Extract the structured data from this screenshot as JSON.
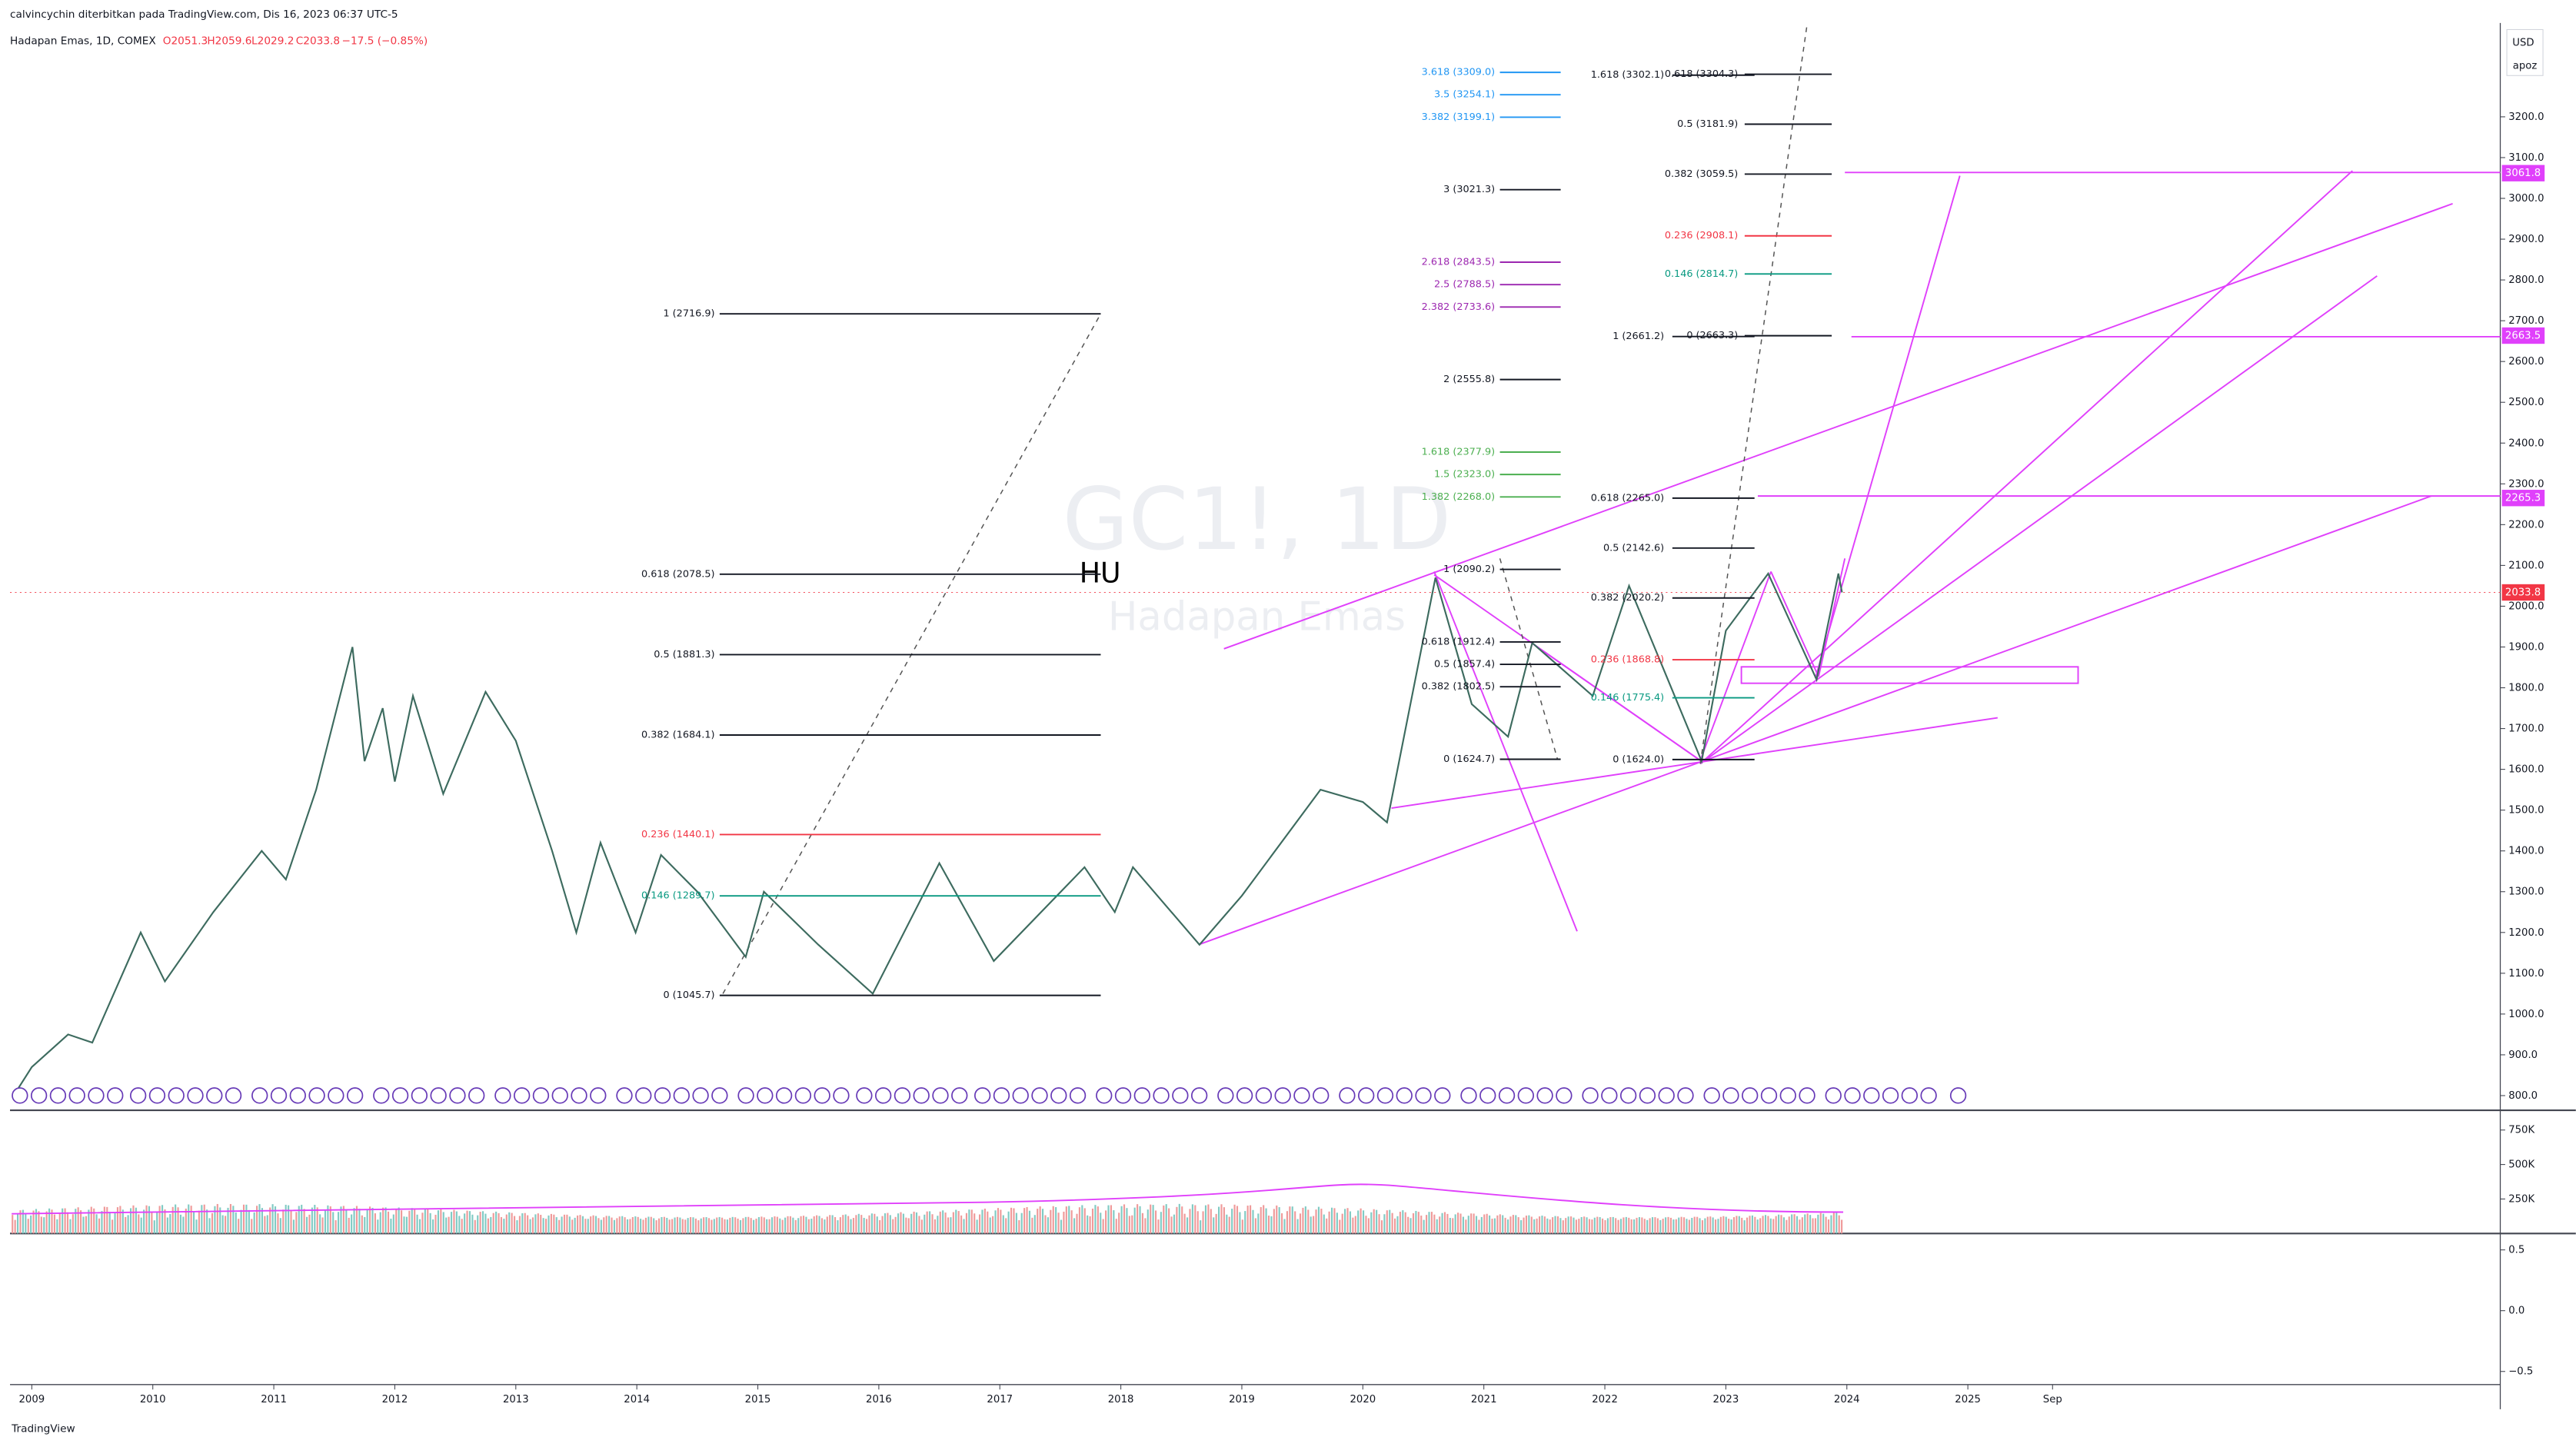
{
  "chart_data": {
    "type": "line",
    "publisher": "calvincychin diterbitkan pada TradingView.com, Dis 16, 2023 06:37 UTC-5",
    "symbol_line": "Hadapan Emas, 1D, COMEX",
    "ohlc": [
      "O2051.3",
      "H2059.6",
      "L2029.2",
      "C2033.8",
      "−17.5 (−0.85%)"
    ],
    "watermark_symbol": "GC1!, 1D",
    "watermark_name": "Hadapan Emas",
    "annotation": "HU",
    "currency": "USD",
    "scale_mode": "apoz",
    "footer": "TradingView",
    "color": "#3d6b5f",
    "x": [
      2008.85,
      2009.0,
      2009.3,
      2009.5,
      2009.9,
      2010.1,
      2010.5,
      2010.9,
      2011.1,
      2011.35,
      2011.65,
      2011.75,
      2011.9,
      2012.0,
      2012.15,
      2012.4,
      2012.75,
      2013.0,
      2013.3,
      2013.5,
      2013.7,
      2013.99,
      2014.2,
      2014.5,
      2014.9,
      2015.05,
      2015.5,
      2015.95,
      2016.5,
      2016.95,
      2017.7,
      2017.95,
      2018.1,
      2018.65,
      2019.0,
      2019.65,
      2020.0,
      2020.2,
      2020.6,
      2020.9,
      2021.2,
      2021.4,
      2021.9,
      2022.2,
      2022.8,
      2023.0,
      2023.35,
      2023.75,
      2023.93,
      2023.96
    ],
    "values": [
      800,
      870,
      950,
      930,
      1200,
      1080,
      1250,
      1400,
      1330,
      1550,
      1900,
      1620,
      1750,
      1570,
      1780,
      1540,
      1790,
      1670,
      1400,
      1200,
      1420,
      1200,
      1390,
      1300,
      1140,
      1300,
      1170,
      1050,
      1370,
      1130,
      1360,
      1250,
      1360,
      1170,
      1290,
      1550,
      1520,
      1470,
      2070,
      1760,
      1680,
      1910,
      1780,
      2050,
      1620,
      1940,
      2080,
      1820,
      2080,
      2033.8
    ],
    "xlim": [
      2008.82,
      2029.4
    ],
    "ylim": [
      768,
      3426
    ],
    "xticks": [
      2009,
      2010,
      2011,
      2012,
      2013,
      2014,
      2015,
      2016,
      2017,
      2018,
      2019,
      2020,
      2021,
      2022,
      2023,
      2024,
      2025,
      {
        "value": 2025.7,
        "label": "Sep"
      }
    ],
    "yticks": [
      {
        "value": 800,
        "label": "800.0"
      },
      {
        "value": 900,
        "label": "900.0"
      },
      {
        "value": 1000,
        "label": "1000.0"
      },
      {
        "value": 1100,
        "label": "1100.0"
      },
      {
        "value": 1200,
        "label": "1200.0"
      },
      {
        "value": 1300,
        "label": "1300.0"
      },
      {
        "value": 1400,
        "label": "1400.0"
      },
      {
        "value": 1500,
        "label": "1500.0"
      },
      {
        "value": 1600,
        "label": "1600.0"
      },
      {
        "value": 1700,
        "label": "1700.0"
      },
      {
        "value": 1800,
        "label": "1800.0"
      },
      {
        "value": 1900,
        "label": "1900.0"
      },
      {
        "value": 2000,
        "label": "2000.0"
      },
      {
        "value": 2100,
        "label": "2100.0"
      },
      {
        "value": 2200,
        "label": "2200.0"
      },
      {
        "value": 2300,
        "label": "2300.0"
      },
      {
        "value": 2400,
        "label": "2400.0"
      },
      {
        "value": 2500,
        "label": "2500.0"
      },
      {
        "value": 2600,
        "label": "2600.0"
      },
      {
        "value": 2700,
        "label": "2700.0"
      },
      {
        "value": 2800,
        "label": "2800.0"
      },
      {
        "value": 2900,
        "label": "2900.0"
      },
      {
        "value": 3000,
        "label": "3000.0"
      },
      {
        "value": 3100,
        "label": "3100.0"
      },
      {
        "value": 3200,
        "label": "3200.0"
      }
    ],
    "price_tags": [
      {
        "value": 3061.8,
        "color": "#e040fb"
      },
      {
        "value": 2663.5,
        "color": "#e040fb"
      },
      {
        "value": 2265.3,
        "color": "#e040fb"
      },
      {
        "value": 2033.8,
        "color": "#f23645"
      }
    ],
    "volume_ylim": [
      0,
      893000
    ],
    "volume_ticks": [
      {
        "value": 750000,
        "label": "750K"
      },
      {
        "value": 500000,
        "label": "500K"
      },
      {
        "value": 250000,
        "label": "250K"
      }
    ],
    "osc_ylim": [
      -0.608,
      0.635
    ],
    "osc_ticks": [
      0.5,
      {
        "value": 0,
        "label": "0.0"
      },
      {
        "value": -0.5,
        "label": "−0.5"
      }
    ],
    "fib_sets": [
      {
        "levels": [
          {
            "value": 2716.9,
            "label": "1 (2716.9)",
            "color": "#131722"
          },
          {
            "value": 2078.5,
            "label": "0.618 (2078.5)",
            "color": "#131722"
          },
          {
            "value": 1881.3,
            "label": "0.5 (1881.3)",
            "color": "#131722"
          },
          {
            "value": 1684.1,
            "label": "0.382 (1684.1)",
            "color": "#131722"
          },
          {
            "value": 1440.1,
            "label": "0.236 (1440.1)",
            "color": "#f23645"
          },
          {
            "value": 1289.7,
            "label": "0.146 (1289.7)",
            "color": "#089981"
          },
          {
            "value": 1045.7,
            "label": "0 (1045.7)",
            "color": "#131722"
          }
        ]
      },
      {
        "levels": [
          {
            "value": 3309.0,
            "label": "3.618 (3309.0)",
            "color": "#2196f3"
          },
          {
            "value": 3254.1,
            "label": "3.5 (3254.1)",
            "color": "#2196f3"
          },
          {
            "value": 3199.1,
            "label": "3.382 (3199.1)",
            "color": "#2196f3"
          },
          {
            "value": 3021.3,
            "label": "3 (3021.3)",
            "color": "#131722"
          },
          {
            "value": 2843.5,
            "label": "2.618 (2843.5)",
            "color": "#9c27b0"
          },
          {
            "value": 2788.5,
            "label": "2.5 (2788.5)",
            "color": "#9c27b0"
          },
          {
            "value": 2733.6,
            "label": "2.382 (2733.6)",
            "color": "#9c27b0"
          },
          {
            "value": 2555.8,
            "label": "2 (2555.8)",
            "color": "#131722"
          },
          {
            "value": 2377.9,
            "label": "1.618 (2377.9)",
            "color": "#4caf50"
          },
          {
            "value": 2323.0,
            "label": "1.5 (2323.0)",
            "color": "#4caf50"
          },
          {
            "value": 2268.0,
            "label": "1.382 (2268.0)",
            "color": "#4caf50"
          },
          {
            "value": 2090.2,
            "label": "1 (2090.2)",
            "color": "#131722"
          },
          {
            "value": 1912.4,
            "label": "0.618 (1912.4)",
            "color": "#131722"
          },
          {
            "value": 1857.4,
            "label": "0.5 (1857.4)",
            "color": "#131722"
          },
          {
            "value": 1802.5,
            "label": "0.382 (1802.5)",
            "color": "#131722"
          },
          {
            "value": 1624.7,
            "label": "0 (1624.7)",
            "color": "#131722"
          }
        ]
      },
      {
        "levels": [
          {
            "value": 3304.3,
            "label": "0.618 (3304.3)",
            "color": "#131722"
          },
          {
            "value": 3181.9,
            "label": "0.5 (3181.9)",
            "color": "#131722"
          },
          {
            "value": 3059.5,
            "label": "0.382 (3059.5)",
            "color": "#131722"
          },
          {
            "value": 2908.1,
            "label": "0.236 (2908.1)",
            "color": "#f23645"
          },
          {
            "value": 2814.7,
            "label": "0.146 (2814.7)",
            "color": "#089981"
          },
          {
            "value": 2663.3,
            "label": "0 (2663.3)",
            "color": "#131722"
          }
        ]
      },
      {
        "levels": [
          {
            "value": 3302.1,
            "label": "1.618 (3302.1)",
            "color": "#131722"
          },
          {
            "value": 2661.2,
            "label": "1 (2661.2)",
            "color": "#131722"
          },
          {
            "value": 2265.0,
            "label": "0.618 (2265.0)",
            "color": "#131722"
          },
          {
            "value": 2142.6,
            "label": "0.5 (2142.6)",
            "color": "#131722"
          },
          {
            "value": 2020.2,
            "label": "0.382 (2020.2)",
            "color": "#131722"
          },
          {
            "value": 1868.8,
            "label": "0.236 (1868.8)",
            "color": "#f23645"
          },
          {
            "value": 1775.4,
            "label": "0.146 (1775.4)",
            "color": "#089981"
          },
          {
            "value": 1624.0,
            "label": "0 (1624.0)",
            "color": "#131722"
          }
        ]
      }
    ]
  }
}
